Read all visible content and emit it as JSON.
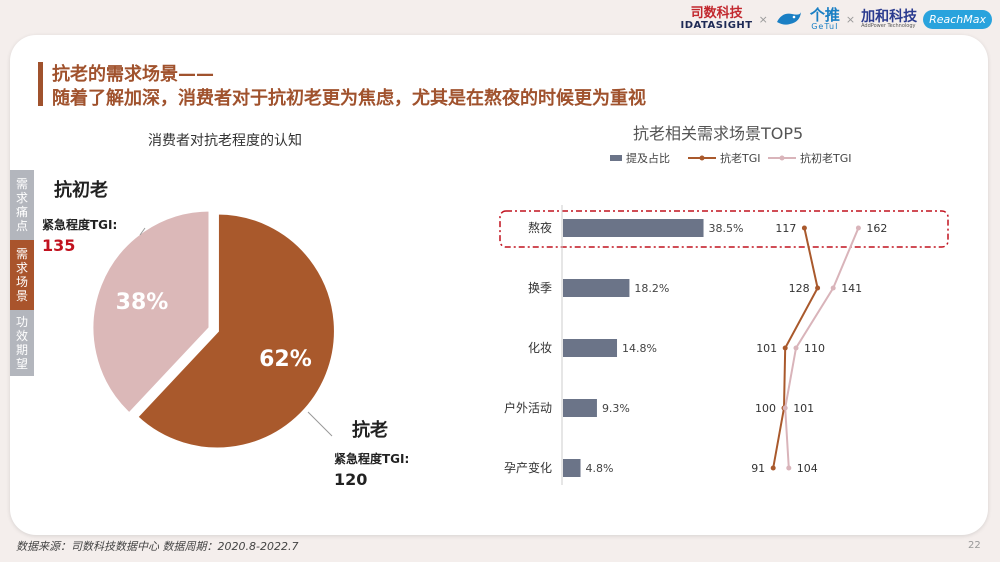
{
  "header": {
    "logos": {
      "sishu_cn": "司数科技",
      "sishu_en": "IDATASIGHT",
      "getui_cn": "个推",
      "getui_en": "GeTuI",
      "jiahe_cn": "加和科技",
      "jiahe_en": "AddPower Technology",
      "reachmax": "ReachMax",
      "separator": "×"
    }
  },
  "title": {
    "line1": "抗老的需求场景——",
    "line2": "随着了解加深，消费者对于抗初老更为焦虑，尤其是在熬夜的时候更为重视"
  },
  "sidebar": {
    "items": [
      {
        "label": "需求痛点",
        "active": false
      },
      {
        "label": "需求场景",
        "active": true
      },
      {
        "label": "功效期望",
        "active": false
      }
    ]
  },
  "pie_section": {
    "title": "消费者对抗老程度的认知",
    "segments": [
      {
        "name": "抗初老",
        "tgi_label": "紧急程度TGI:",
        "tgi_value": "135",
        "percent_label": "38%",
        "color": "#dbb8b8"
      },
      {
        "name": "抗老",
        "tgi_label": "紧急程度TGI:",
        "tgi_value": "120",
        "percent_label": "62%",
        "color": "#a9592c"
      }
    ]
  },
  "chart_data": [
    {
      "type": "pie",
      "title": "消费者对抗老程度的认知",
      "categories": [
        "抗初老",
        "抗老"
      ],
      "values": [
        38,
        62
      ]
    },
    {
      "type": "bar",
      "title": "抗老相关需求场景TOP5",
      "categories": [
        "熬夜",
        "换季",
        "化妆",
        "户外活动",
        "孕产变化"
      ],
      "series": [
        {
          "name": "提及占比",
          "type": "bar",
          "values": [
            38.5,
            18.2,
            14.8,
            9.3,
            4.8
          ],
          "labels": [
            "38.5%",
            "18.2%",
            "14.8%",
            "9.3%",
            "4.8%"
          ],
          "color": "#6b7488"
        },
        {
          "name": "抗老TGI",
          "type": "line",
          "values": [
            117,
            128,
            101,
            100,
            91
          ],
          "color": "#a9592c"
        },
        {
          "name": "抗初老TGI",
          "type": "line",
          "values": [
            162,
            141,
            110,
            101,
            104
          ],
          "color": "#d9b4ba"
        }
      ],
      "highlight": "熬夜"
    }
  ],
  "footer": {
    "source": "数据来源：司数科技数据中心    数据周期：2020.8-2022.7",
    "page": "22"
  }
}
